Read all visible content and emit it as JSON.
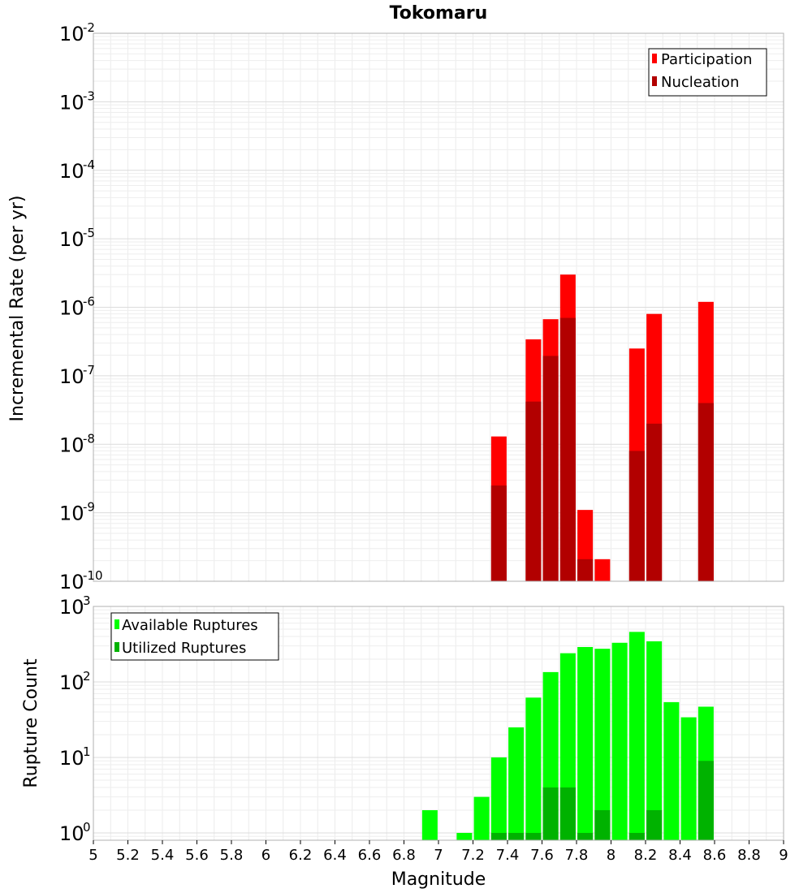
{
  "chart_data": [
    {
      "type": "bar",
      "title": "Tokomaru",
      "xlabel": "",
      "ylabel": "Incremental Rate (per yr)",
      "xlim": [
        5,
        9
      ],
      "ylim": [
        1e-10,
        0.01
      ],
      "yscale": "log",
      "grid": true,
      "legend_position": "top-right",
      "y_ticks": [
        {
          "base": "10",
          "exp": "-2",
          "value": 0.01
        },
        {
          "base": "10",
          "exp": "-3",
          "value": 0.001
        },
        {
          "base": "10",
          "exp": "-4",
          "value": 0.0001
        },
        {
          "base": "10",
          "exp": "-5",
          "value": 1e-05
        },
        {
          "base": "10",
          "exp": "-6",
          "value": 1e-06
        },
        {
          "base": "10",
          "exp": "-7",
          "value": 1e-07
        },
        {
          "base": "10",
          "exp": "-8",
          "value": 1e-08
        },
        {
          "base": "10",
          "exp": "-9",
          "value": 1e-09
        },
        {
          "base": "10",
          "exp": "-10",
          "value": 1e-10
        }
      ],
      "x": [
        7.35,
        7.55,
        7.65,
        7.75,
        7.85,
        7.95,
        8.15,
        8.25,
        8.55
      ],
      "series": [
        {
          "name": "Participation",
          "color": "#ff0000",
          "values": [
            1.3e-08,
            3.4e-07,
            6.7e-07,
            3e-06,
            1.1e-09,
            2.1e-10,
            2.5e-07,
            8e-07,
            1.2e-06
          ]
        },
        {
          "name": "Nucleation",
          "color": "#b20000",
          "values": [
            2.5e-09,
            4.2e-08,
            1.95e-07,
            7e-07,
            2.1e-10,
            null,
            8e-09,
            2e-08,
            4e-08
          ]
        }
      ]
    },
    {
      "type": "bar",
      "title": "",
      "xlabel": "Magnitude",
      "ylabel": "Rupture Count",
      "xlim": [
        5,
        9
      ],
      "ylim": [
        0.8,
        1000
      ],
      "yscale": "log",
      "grid": true,
      "legend_position": "top-left",
      "x_ticks": [
        "5",
        "5.2",
        "5.4",
        "5.6",
        "5.8",
        "6",
        "6.2",
        "6.4",
        "6.6",
        "6.8",
        "7",
        "7.2",
        "7.4",
        "7.6",
        "7.8",
        "8",
        "8.2",
        "8.4",
        "8.6",
        "8.8",
        "9"
      ],
      "y_ticks": [
        {
          "base": "10",
          "exp": "3",
          "value": 1000
        },
        {
          "base": "10",
          "exp": "2",
          "value": 100
        },
        {
          "base": "10",
          "exp": "1",
          "value": 10
        },
        {
          "base": "10",
          "exp": "0",
          "value": 1
        }
      ],
      "x": [
        6.95,
        7.15,
        7.25,
        7.35,
        7.45,
        7.55,
        7.65,
        7.75,
        7.85,
        7.95,
        8.05,
        8.15,
        8.25,
        8.35,
        8.45,
        8.55
      ],
      "series": [
        {
          "name": "Available Ruptures",
          "color": "#00ff00",
          "values": [
            2,
            1,
            3,
            10,
            25,
            62,
            135,
            240,
            290,
            275,
            330,
            460,
            345,
            54,
            34,
            47
          ]
        },
        {
          "name": "Utilized Ruptures",
          "color": "#00b200",
          "values": [
            null,
            null,
            null,
            1,
            1,
            1,
            4,
            4,
            1,
            2,
            null,
            1,
            2,
            null,
            null,
            9
          ]
        }
      ]
    }
  ]
}
